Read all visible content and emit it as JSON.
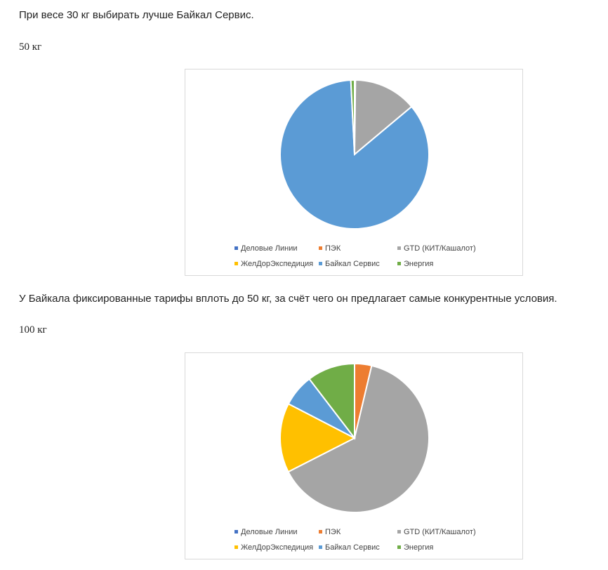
{
  "text": {
    "p1": "При весе 30 кг выбирать лучше Байкал Сервис.",
    "h50": "50 кг",
    "p2": "У Байкала фиксированные тарифы вплоть до 50 кг, за счёт чего он предлагает самые конкурентные условия.",
    "h100": "100 кг"
  },
  "legend": [
    {
      "name": "Деловые Линии",
      "color": "#4472C4"
    },
    {
      "name": "ПЭК",
      "color": "#ED7D31"
    },
    {
      "name": "GTD (КИТ/Кашалот)",
      "color": "#A5A5A5"
    },
    {
      "name": "ЖелДорЭкспедиция",
      "color": "#FFC000"
    },
    {
      "name": "Байкал Сервис",
      "color": "#5B9BD5"
    },
    {
      "name": "Энергия",
      "color": "#70AD47"
    }
  ],
  "chart_data": [
    {
      "type": "pie",
      "title": "",
      "categories": [
        "Деловые Линии",
        "ПЭК",
        "GTD (КИТ/Кашалот)",
        "ЖелДорЭкспедиция",
        "Байкал Сервис",
        "Энергия"
      ],
      "values": [
        0.2,
        0,
        13.7,
        0,
        85.3,
        0.8
      ],
      "colors": [
        "#4472C4",
        "#ED7D31",
        "#A5A5A5",
        "#FFC000",
        "#5B9BD5",
        "#70AD47"
      ],
      "legend_position": "bottom"
    },
    {
      "type": "pie",
      "title": "",
      "categories": [
        "Деловые Линии",
        "ПЭК",
        "GTD (КИТ/Кашалот)",
        "ЖелДорЭкспедиция",
        "Байкал Сервис",
        "Энергия"
      ],
      "values": [
        0,
        3.7,
        63.8,
        15.1,
        7.0,
        10.4
      ],
      "colors": [
        "#4472C4",
        "#ED7D31",
        "#A5A5A5",
        "#FFC000",
        "#5B9BD5",
        "#70AD47"
      ],
      "legend_position": "bottom"
    }
  ]
}
